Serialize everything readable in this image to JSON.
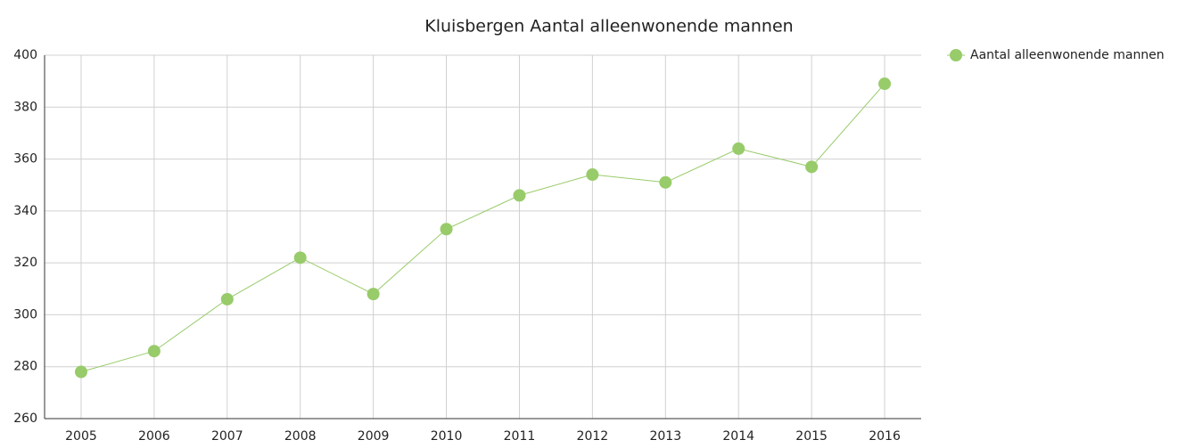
{
  "chart_data": {
    "type": "line",
    "title": "Kluisbergen  Aantal alleenwonende mannen",
    "categories": [
      "2005",
      "2006",
      "2007",
      "2008",
      "2009",
      "2010",
      "2011",
      "2012",
      "2013",
      "2014",
      "2015",
      "2016"
    ],
    "series": [
      {
        "name": "Aantal alleenwonende mannen",
        "color": "#98cb6a",
        "values": [
          278,
          286,
          306,
          322,
          308,
          333,
          346,
          354,
          351,
          364,
          357,
          389
        ]
      }
    ],
    "ylim": [
      260,
      400
    ],
    "yticks": [
      260,
      280,
      300,
      320,
      340,
      360,
      380,
      400
    ],
    "grid": true,
    "legend": "right"
  }
}
